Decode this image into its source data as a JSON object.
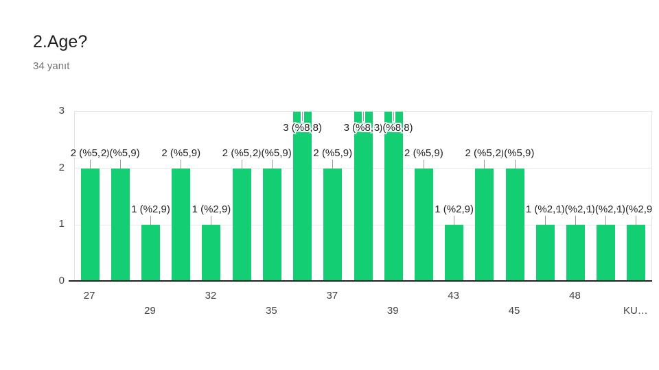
{
  "header": {
    "title": "2.Age?",
    "subtitle": "34 yanıt"
  },
  "chart_data": {
    "type": "bar",
    "title": "2.Age?",
    "responses_label": "34 yanıt",
    "responses_count": 34,
    "bar_color": "#13ce72",
    "grid": true,
    "ylim": [
      0,
      3
    ],
    "y_ticks": [
      0,
      1,
      2,
      3
    ],
    "values": [
      2,
      2,
      1,
      2,
      1,
      2,
      2,
      3,
      2,
      3,
      3,
      2,
      1,
      2,
      2,
      1,
      1,
      1,
      1
    ],
    "bar_labels": [
      "2 (%5,9)",
      "2 (%5,9)",
      "1 (%2,9)",
      "2 (%5,9)",
      "1 (%2,9)",
      "2 (%5,9)",
      "2 (%5,9)",
      "3 (%8,8)",
      "2 (%5,9)",
      "3 (%8,8)",
      "3 (%8,8)",
      "2 (%5,9)",
      "1 (%2,9)",
      "2 (%5,9)",
      "2 (%5,9)",
      "1 (%2,9)",
      "1 (%2,9)",
      "1 (%2,9)",
      "1 (%2,9)"
    ],
    "x_ticks": [
      {
        "text": "27",
        "bar": 0,
        "row": 0
      },
      {
        "text": "29",
        "bar": 2,
        "row": 1
      },
      {
        "text": "32",
        "bar": 4,
        "row": 0
      },
      {
        "text": "35",
        "bar": 6,
        "row": 1
      },
      {
        "text": "37",
        "bar": 8,
        "row": 0
      },
      {
        "text": "39",
        "bar": 10,
        "row": 1
      },
      {
        "text": "43",
        "bar": 12,
        "row": 0
      },
      {
        "text": "45",
        "bar": 14,
        "row": 1
      },
      {
        "text": "48",
        "bar": 16,
        "row": 0
      },
      {
        "text": "KU…",
        "bar": 18,
        "row": 1
      }
    ]
  }
}
